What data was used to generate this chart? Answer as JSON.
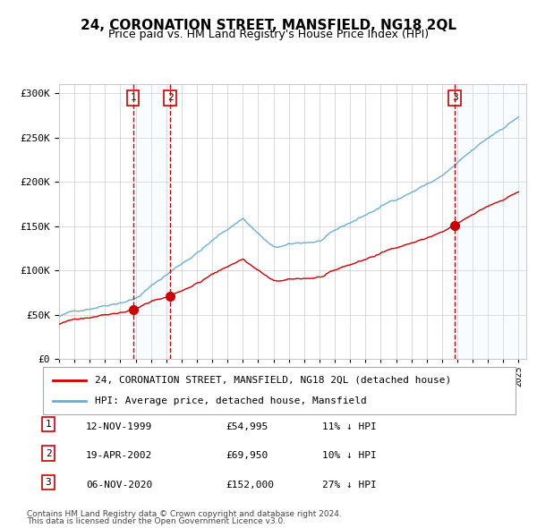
{
  "title": "24, CORONATION STREET, MANSFIELD, NG18 2QL",
  "subtitle": "Price paid vs. HM Land Registry's House Price Index (HPI)",
  "legend_line1": "24, CORONATION STREET, MANSFIELD, NG18 2QL (detached house)",
  "legend_line2": "HPI: Average price, detached house, Mansfield",
  "footer1": "Contains HM Land Registry data © Crown copyright and database right 2024.",
  "footer2": "This data is licensed under the Open Government Licence v3.0.",
  "sale_dates": [
    "12-NOV-1999",
    "19-APR-2002",
    "06-NOV-2020"
  ],
  "sale_prices": [
    54995,
    69950,
    152000
  ],
  "sale_labels": [
    "1",
    "2",
    "3"
  ],
  "sale_hpi_diff": [
    "11% ↓ HPI",
    "10% ↓ HPI",
    "27% ↓ HPI"
  ],
  "hpi_color": "#6baed6",
  "price_color": "#cc0000",
  "sale_dot_color": "#cc0000",
  "background_color": "#ffffff",
  "grid_color": "#cccccc",
  "shade_color": "#ddeeff",
  "dashed_line_color": "#cc0000",
  "ylim": [
    0,
    310000
  ],
  "yticks": [
    0,
    50000,
    100000,
    150000,
    200000,
    250000,
    300000
  ],
  "start_year": 1995,
  "end_year": 2025
}
